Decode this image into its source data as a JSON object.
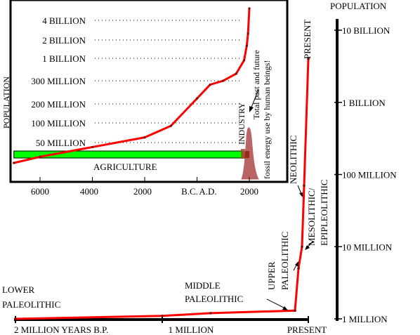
{
  "chart_data": [
    {
      "type": "line",
      "axis_title": "POPULATION",
      "y_scale": "log",
      "y_tick_labels": [
        "10 BILLION",
        "1 BILLION",
        "100 MILLION",
        "10 MILLION",
        "1 MILLION"
      ],
      "y_tick_values": [
        10000000000,
        1000000000,
        100000000,
        10000000,
        1000000
      ],
      "x_tick_labels": [
        "2 MILLION YEARS B.P.",
        "1 MILLION",
        "PRESENT"
      ],
      "x_tick_values": [
        2000000,
        1000000,
        0
      ],
      "series": [
        {
          "color": "#ff0000",
          "points": [
            {
              "x": 2000000,
              "y": 1000000
            },
            {
              "x": 1000000,
              "y": 1100000
            },
            {
              "x": 300000,
              "y": 1200000
            },
            {
              "x": 35000,
              "y": 1300000
            },
            {
              "x": 20000,
              "y": 5000000
            },
            {
              "x": 10000,
              "y": 10000000
            },
            {
              "x": 5000,
              "y": 70000000
            },
            {
              "x": 0,
              "y": 4000000000
            }
          ]
        }
      ],
      "annotations": [
        {
          "text": "LOWER",
          "at_x": 2000000
        },
        {
          "text": "PALEOLITHIC",
          "at_x": 2000000
        },
        {
          "text": "MIDDLE",
          "at_x": 300000
        },
        {
          "text": "PALEOLITHIC",
          "at_x": 300000
        },
        {
          "text": "UPPER",
          "at_x": 35000
        },
        {
          "text": "PALEOLITHIC",
          "at_x": 35000
        },
        {
          "text": "MESOLITHIC/",
          "at_x": 10000
        },
        {
          "text": "EPIPLEOLITHIC",
          "at_x": 10000
        },
        {
          "text": "NEOLITHIC",
          "at_x": 5000
        },
        {
          "text": "PRESENT",
          "at_x": 0
        }
      ]
    },
    {
      "type": "line",
      "inset": true,
      "ylabel": "POPULATION",
      "y_tick_labels": [
        "4 BILLION",
        "2 BILLION",
        "1 BILLION",
        "300 MILLION",
        "200 MILLION",
        "100 MILLION",
        "50 MILLION"
      ],
      "y_tick_values": [
        4000000000,
        2000000000,
        1000000000,
        300000000,
        200000000,
        100000000,
        50000000
      ],
      "x_tick_labels": [
        "6000",
        "4000",
        "2000",
        "B.C.",
        "A.D.",
        "2000"
      ],
      "x_tick_values": [
        -6000,
        -4000,
        -2000,
        0,
        2000
      ],
      "bands": [
        {
          "label": "AGRICULTURE",
          "color": "#00ff00",
          "from": -7000,
          "to": 1750
        },
        {
          "label": "INDUSTRY",
          "color": "#a0522d",
          "from": 1750,
          "to": 2000
        }
      ],
      "fossil_fuel_note": "Total past and future fossil energy use by human beings!",
      "series": [
        {
          "color": "#ff0000",
          "points": [
            {
              "x": -7000,
              "y": 5000000
            },
            {
              "x": -6000,
              "y": 10000000
            },
            {
              "x": -4000,
              "y": 30000000
            },
            {
              "x": -2000,
              "y": 60000000
            },
            {
              "x": -1000,
              "y": 90000000
            },
            {
              "x": 0,
              "y": 220000000
            },
            {
              "x": 500,
              "y": 280000000
            },
            {
              "x": 1000,
              "y": 300000000
            },
            {
              "x": 1500,
              "y": 440000000
            },
            {
              "x": 1800,
              "y": 900000000
            },
            {
              "x": 1900,
              "y": 1600000000
            },
            {
              "x": 1950,
              "y": 2500000000
            },
            {
              "x": 2000,
              "y": 6000000000
            }
          ]
        }
      ]
    }
  ]
}
